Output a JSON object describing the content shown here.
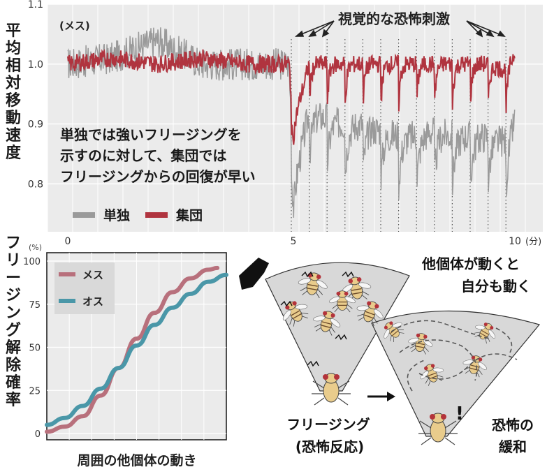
{
  "top_chart": {
    "ylabel": "平均相対移動速度",
    "legend_title": "(メス)",
    "annotation": "視覚的な恐怖刺激",
    "description": [
      "単独では強いフリージングを",
      "示すのに対して、集団では",
      "フリージングからの回復が早い"
    ],
    "legend": [
      {
        "label": "単独",
        "color": "#9a9a9a"
      },
      {
        "label": "集団",
        "color": "#b0343f"
      }
    ],
    "x_ticks": [
      "0",
      "5",
      "10"
    ],
    "x_unit": "(分)",
    "y_ticks": [
      "1.1",
      "1.0",
      "0.9",
      "0.8"
    ]
  },
  "bottom_chart": {
    "ylabel": "フリージング解除確率",
    "y_unit": "(%)",
    "y_ticks": [
      "100",
      "75",
      "50",
      "25",
      "0"
    ],
    "xlabel": "周囲の他個体の動き",
    "legend": [
      {
        "label": "メス",
        "color": "#b8707c"
      },
      {
        "label": "オス",
        "color": "#4a97a8"
      }
    ]
  },
  "illustration": {
    "caption_right_1": "他個体が動くと",
    "caption_right_2": "自分も動く",
    "caption_left_1": "フリージング",
    "caption_left_2": "(恐怖反応)",
    "caption_relief_1": "恐怖の",
    "caption_relief_2": "緩和"
  },
  "chart_data": [
    {
      "type": "line",
      "title": "",
      "xlabel": "(分)",
      "ylabel": "平均相対移動速度",
      "xlim": [
        0,
        10
      ],
      "ylim": [
        0.72,
        1.1
      ],
      "stimulus_times": [
        5.0,
        5.4,
        5.8,
        6.2,
        6.6,
        7.0,
        7.4,
        7.8,
        8.2,
        8.6,
        9.0,
        9.4,
        9.8
      ],
      "series": [
        {
          "name": "単独",
          "color": "#9a9a9a",
          "x": [
            0,
            1,
            2,
            3,
            4,
            4.95,
            5.05,
            5.4,
            5.8,
            6.2,
            6.6,
            7.0,
            7.4,
            7.8,
            8.2,
            8.6,
            9.0,
            9.4,
            9.8,
            10
          ],
          "y": [
            1.0,
            1.01,
            1.04,
            1.0,
            1.0,
            1.0,
            0.8,
            0.92,
            0.91,
            0.9,
            0.9,
            0.89,
            0.88,
            0.88,
            0.89,
            0.88,
            0.88,
            0.88,
            0.87,
            0.91
          ]
        },
        {
          "name": "集団",
          "color": "#b0343f",
          "x": [
            0,
            1,
            2,
            3,
            4,
            4.95,
            5.05,
            5.4,
            5.8,
            6.2,
            6.6,
            7.0,
            7.4,
            7.8,
            8.2,
            8.6,
            9.0,
            9.4,
            9.8,
            10
          ],
          "y": [
            1.0,
            1.01,
            1.0,
            1.01,
            1.0,
            1.0,
            0.9,
            1.0,
            1.0,
            1.0,
            1.0,
            1.0,
            1.0,
            1.0,
            1.0,
            1.0,
            1.0,
            1.0,
            0.99,
            1.02
          ]
        }
      ]
    },
    {
      "type": "line",
      "title": "",
      "xlabel": "周囲の他個体の動き",
      "ylabel": "フリージング解除確率",
      "ylim": [
        0,
        100
      ],
      "series": [
        {
          "name": "メス",
          "color": "#b8707c",
          "x": [
            0,
            0.1,
            0.2,
            0.3,
            0.4,
            0.5,
            0.6,
            0.7,
            0.8,
            0.9,
            0.95
          ],
          "y": [
            1,
            4,
            10,
            22,
            38,
            55,
            70,
            82,
            90,
            95,
            96
          ]
        },
        {
          "name": "オス",
          "color": "#4a97a8",
          "x": [
            0,
            0.1,
            0.2,
            0.3,
            0.4,
            0.5,
            0.6,
            0.7,
            0.8,
            0.9,
            1.0
          ],
          "y": [
            5,
            9,
            16,
            26,
            38,
            51,
            63,
            73,
            81,
            88,
            92
          ]
        }
      ]
    }
  ]
}
